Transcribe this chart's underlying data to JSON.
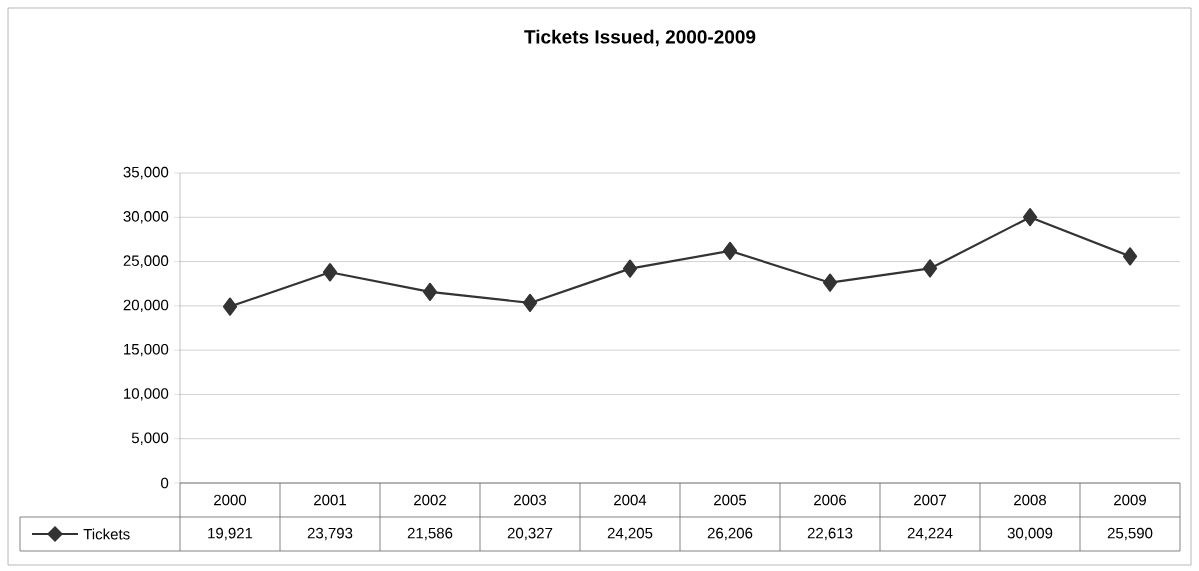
{
  "chart_data": {
    "type": "line",
    "title": "Tickets Issued, 2000-2009",
    "categories": [
      "2000",
      "2001",
      "2002",
      "2003",
      "2004",
      "2005",
      "2006",
      "2007",
      "2008",
      "2009"
    ],
    "series": [
      {
        "name": "Tickets",
        "color": "#333333",
        "values": [
          19921,
          23793,
          21586,
          20327,
          24205,
          26206,
          22613,
          24224,
          30009,
          25590
        ],
        "value_labels": [
          "19,921",
          "23,793",
          "21,586",
          "20,327",
          "24,205",
          "26,206",
          "22,613",
          "24,224",
          "30,009",
          "25,590"
        ]
      }
    ],
    "ylim": [
      0,
      35000
    ],
    "yticks": [
      {
        "value": 0,
        "label": "0"
      },
      {
        "value": 5000,
        "label": "5,000"
      },
      {
        "value": 10000,
        "label": "10,000"
      },
      {
        "value": 15000,
        "label": "15,000"
      },
      {
        "value": 20000,
        "label": "20,000"
      },
      {
        "value": 25000,
        "label": "25,000"
      },
      {
        "value": 30000,
        "label": "30,000"
      },
      {
        "value": 35000,
        "label": "35,000"
      }
    ],
    "grid": "y",
    "marker": "diamond",
    "line_style": "solid",
    "legend": "bottom",
    "data_labels": true
  }
}
